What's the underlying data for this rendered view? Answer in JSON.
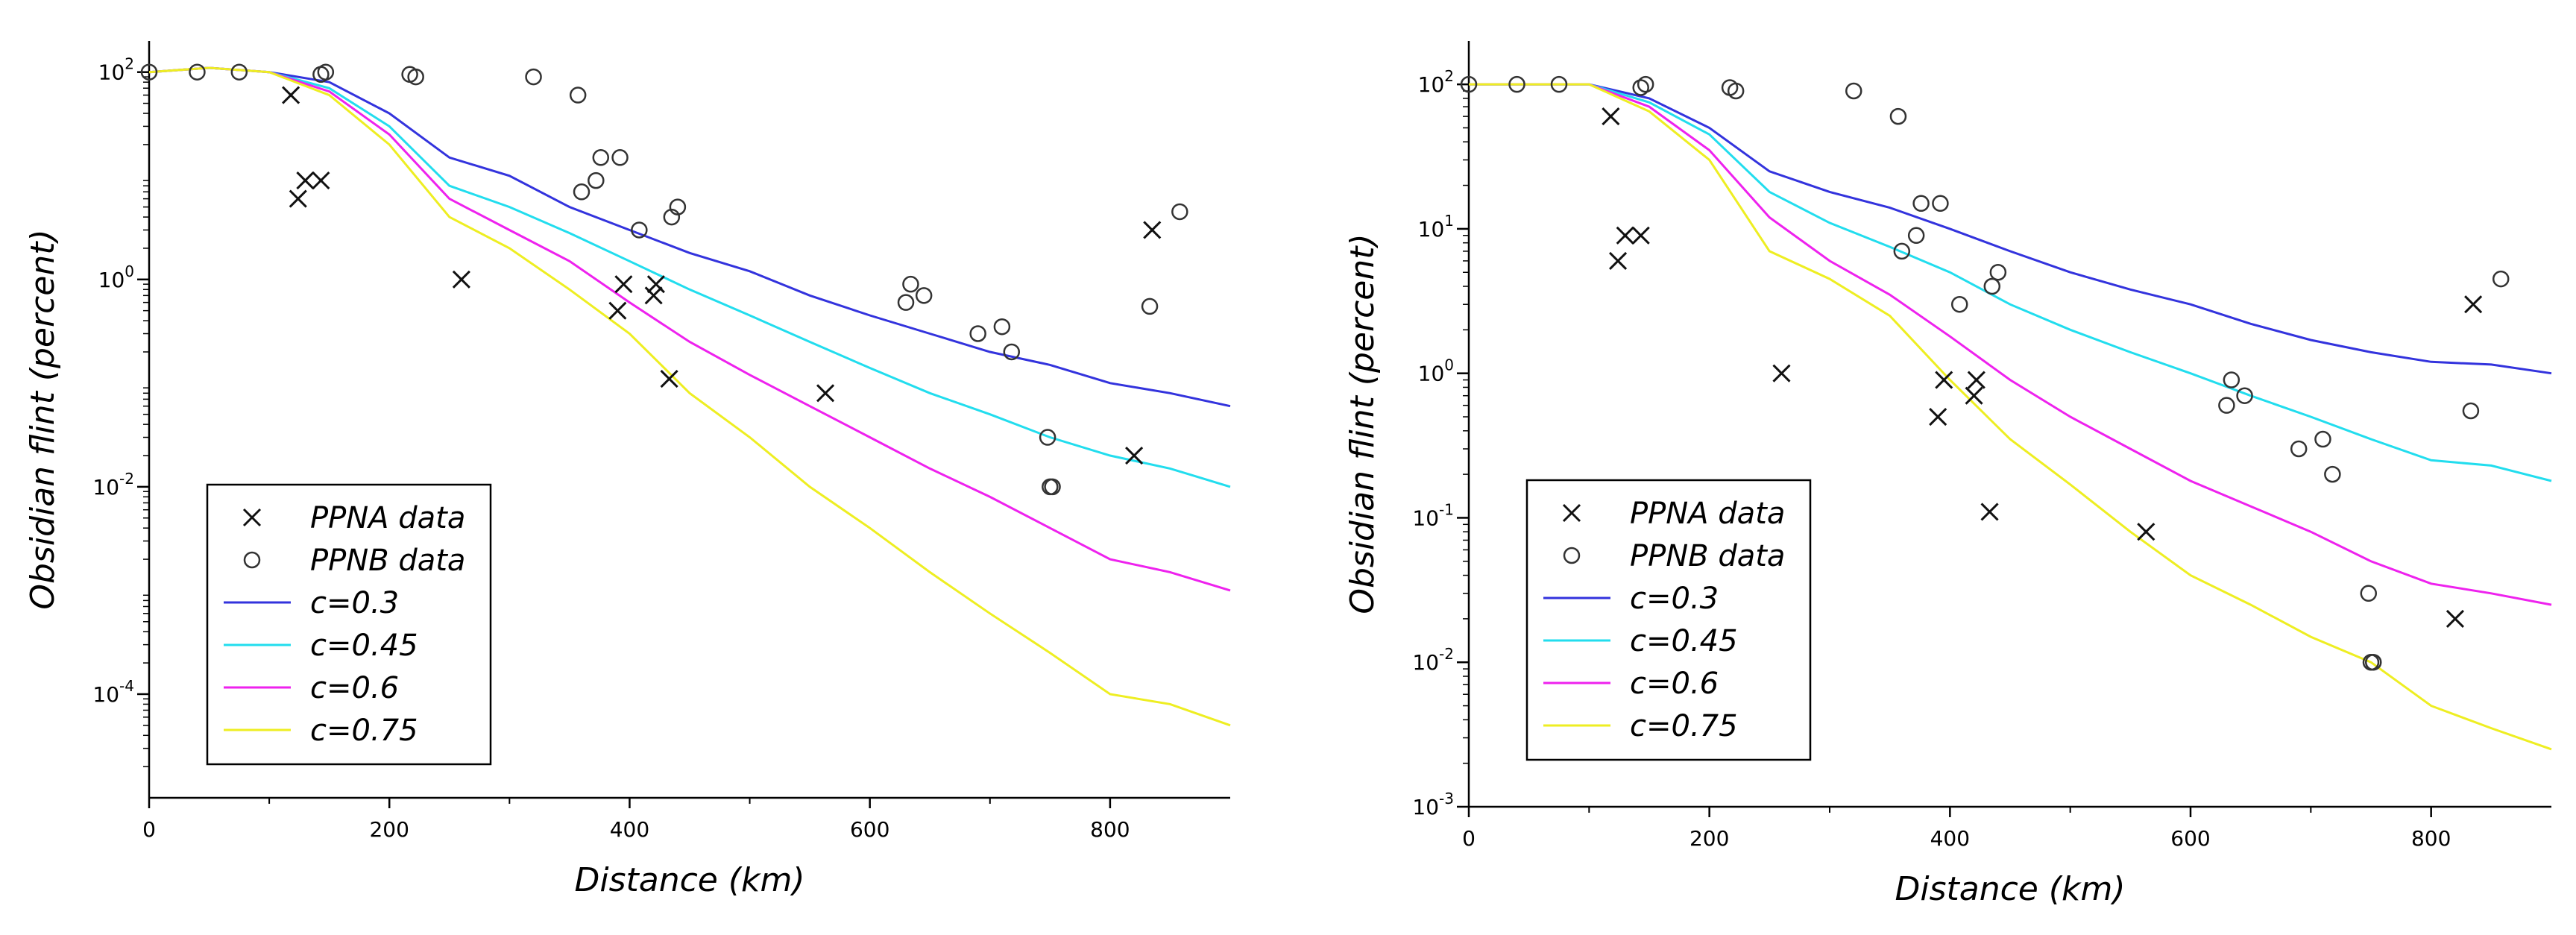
{
  "chart_data": [
    {
      "type": "line",
      "xlabel": "Distance (km)",
      "ylabel": "Obsidian flint (percent)",
      "xlim": [
        0,
        900
      ],
      "ylim_log10": [
        -5,
        2.3
      ],
      "yscale": "log",
      "xticks": [
        0,
        200,
        400,
        600,
        800
      ],
      "xtick_labels": [
        "0",
        "200",
        "400",
        "600",
        "800"
      ],
      "yticks_exp": [
        2,
        0,
        -2,
        -4
      ],
      "ytick_labels": [
        "2",
        "0",
        "-2",
        "-4"
      ],
      "ytick_base": "10",
      "legend_position": "lower-left",
      "series": [
        {
          "name": "c=0.3",
          "color": "#3333dd",
          "style": "line",
          "x": [
            0,
            50,
            100,
            150,
            200,
            250,
            300,
            350,
            400,
            450,
            500,
            550,
            600,
            650,
            700,
            750,
            800,
            850,
            900
          ],
          "y": [
            100,
            110,
            100,
            80,
            40,
            15,
            10,
            5,
            3,
            1.8,
            1.2,
            0.7,
            0.45,
            0.3,
            0.2,
            0.15,
            0.1,
            0.08,
            0.06
          ]
        },
        {
          "name": "c=0.45",
          "color": "#22ddee",
          "style": "line",
          "x": [
            0,
            50,
            100,
            150,
            200,
            250,
            300,
            350,
            400,
            450,
            500,
            550,
            600,
            650,
            700,
            750,
            800,
            850,
            900
          ],
          "y": [
            100,
            110,
            100,
            70,
            30,
            8,
            5,
            2.8,
            1.5,
            0.8,
            0.45,
            0.25,
            0.14,
            0.08,
            0.05,
            0.03,
            0.02,
            0.015,
            0.01
          ]
        },
        {
          "name": "c=0.6",
          "color": "#ee22ee",
          "style": "line",
          "x": [
            0,
            50,
            100,
            150,
            200,
            250,
            300,
            350,
            400,
            450,
            500,
            550,
            600,
            650,
            700,
            750,
            800,
            850,
            900
          ],
          "y": [
            100,
            110,
            100,
            65,
            25,
            6,
            3,
            1.5,
            0.6,
            0.25,
            0.12,
            0.06,
            0.03,
            0.015,
            0.008,
            0.004,
            0.002,
            0.0015,
            0.001
          ]
        },
        {
          "name": "c=0.75",
          "color": "#eeee22",
          "style": "line",
          "x": [
            0,
            50,
            100,
            150,
            200,
            250,
            300,
            350,
            400,
            450,
            500,
            550,
            600,
            650,
            700,
            750,
            800,
            850,
            900
          ],
          "y": [
            100,
            110,
            100,
            60,
            20,
            4,
            2,
            0.8,
            0.3,
            0.08,
            0.03,
            0.01,
            0.004,
            0.0015,
            0.0006,
            0.00025,
            0.0001,
            8e-05,
            5e-05
          ]
        },
        {
          "name": "PPNA data",
          "marker": "x",
          "style": "scatter",
          "x": [
            118,
            124,
            130,
            143,
            260,
            390,
            395,
            420,
            422,
            433,
            563,
            820,
            835
          ],
          "y": [
            60,
            6,
            9,
            9,
            1,
            0.5,
            0.9,
            0.7,
            0.9,
            0.11,
            0.08,
            0.02,
            3
          ]
        },
        {
          "name": "PPNB data",
          "marker": "o",
          "style": "scatter",
          "x": [
            0,
            40,
            75,
            143,
            147,
            217,
            222,
            320,
            357,
            360,
            372,
            376,
            392,
            408,
            435,
            440,
            630,
            634,
            645,
            690,
            710,
            718,
            748,
            750,
            752,
            833,
            858
          ],
          "y": [
            100,
            100,
            100,
            95,
            100,
            95,
            90,
            90,
            60,
            7,
            9,
            15,
            15,
            3,
            4,
            5,
            0.6,
            0.9,
            0.7,
            0.3,
            0.35,
            0.2,
            0.03,
            0.01,
            0.01,
            0.55,
            4.5
          ]
        }
      ]
    },
    {
      "type": "line",
      "xlabel": "Distance (km)",
      "ylabel": "Obsidian flint (percent)",
      "xlim": [
        0,
        900
      ],
      "ylim_log10": [
        -3,
        2.3
      ],
      "yscale": "log",
      "xticks": [
        0,
        200,
        400,
        600,
        800
      ],
      "xtick_labels": [
        "0",
        "200",
        "400",
        "600",
        "800"
      ],
      "yticks_exp": [
        2,
        1,
        0,
        -1,
        -2,
        -3
      ],
      "ytick_labels": [
        "2",
        "1",
        "0",
        "-1",
        "-2",
        "-3"
      ],
      "ytick_base": "10",
      "legend_position": "lower-left",
      "series": [
        {
          "name": "c=0.3",
          "color": "#3333dd",
          "style": "line",
          "x": [
            0,
            50,
            100,
            150,
            200,
            250,
            300,
            350,
            400,
            450,
            500,
            550,
            600,
            650,
            700,
            750,
            800,
            850,
            900
          ],
          "y": [
            100,
            100,
            100,
            80,
            50,
            25,
            18,
            14,
            10,
            7,
            5,
            3.8,
            3,
            2.2,
            1.7,
            1.4,
            1.2,
            1.15,
            1
          ]
        },
        {
          "name": "c=0.45",
          "color": "#22ddee",
          "style": "line",
          "x": [
            0,
            50,
            100,
            150,
            200,
            250,
            300,
            350,
            400,
            450,
            500,
            550,
            600,
            650,
            700,
            750,
            800,
            850,
            900
          ],
          "y": [
            100,
            100,
            100,
            75,
            45,
            18,
            11,
            7.5,
            5,
            3,
            2,
            1.4,
            1,
            0.7,
            0.5,
            0.35,
            0.25,
            0.23,
            0.18
          ]
        },
        {
          "name": "c=0.6",
          "color": "#ee22ee",
          "style": "line",
          "x": [
            0,
            50,
            100,
            150,
            200,
            250,
            300,
            350,
            400,
            450,
            500,
            550,
            600,
            650,
            700,
            750,
            800,
            850,
            900
          ],
          "y": [
            100,
            100,
            100,
            70,
            35,
            12,
            6,
            3.5,
            1.8,
            0.9,
            0.5,
            0.3,
            0.18,
            0.12,
            0.08,
            0.05,
            0.035,
            0.03,
            0.025
          ]
        },
        {
          "name": "c=0.75",
          "color": "#eeee22",
          "style": "line",
          "x": [
            0,
            50,
            100,
            150,
            200,
            250,
            300,
            350,
            400,
            450,
            500,
            550,
            600,
            650,
            700,
            750,
            800,
            850,
            900
          ],
          "y": [
            100,
            100,
            100,
            65,
            30,
            7,
            4.5,
            2.5,
            0.9,
            0.35,
            0.17,
            0.08,
            0.04,
            0.025,
            0.015,
            0.01,
            0.005,
            0.0035,
            0.0025
          ]
        },
        {
          "name": "PPNA data",
          "marker": "x",
          "style": "scatter",
          "x": [
            118,
            124,
            130,
            143,
            260,
            390,
            395,
            420,
            422,
            433,
            563,
            820,
            835
          ],
          "y": [
            60,
            6,
            9,
            9,
            1,
            0.5,
            0.9,
            0.7,
            0.9,
            0.11,
            0.08,
            0.02,
            3
          ]
        },
        {
          "name": "PPNB data",
          "marker": "o",
          "style": "scatter",
          "x": [
            0,
            40,
            75,
            143,
            147,
            217,
            222,
            320,
            357,
            360,
            372,
            376,
            392,
            408,
            435,
            440,
            630,
            634,
            645,
            690,
            710,
            718,
            748,
            750,
            752,
            833,
            858
          ],
          "y": [
            100,
            100,
            100,
            95,
            100,
            95,
            90,
            90,
            60,
            7,
            9,
            15,
            15,
            3,
            4,
            5,
            0.6,
            0.9,
            0.7,
            0.3,
            0.35,
            0.2,
            0.03,
            0.01,
            0.01,
            0.55,
            4.5
          ]
        }
      ]
    }
  ]
}
